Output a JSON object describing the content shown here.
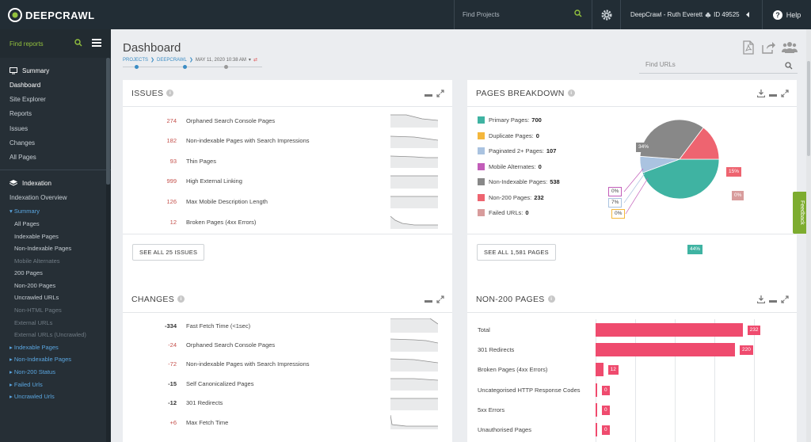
{
  "topbar": {
    "logo": "DEEPCRAWL",
    "search_placeholder": "Find Projects",
    "account": "DeepCrawl - Ruth Everett",
    "account_id": "ID 49525",
    "help": "Help"
  },
  "sidebar": {
    "search_placeholder": "Find reports",
    "summary_header": "Summary",
    "summary_items": [
      "Dashboard",
      "Site Explorer",
      "Reports",
      "Issues",
      "Changes",
      "All Pages"
    ],
    "indexation_header": "Indexation",
    "indexation_overview": "Indexation Overview",
    "summary_sub": "Summary",
    "sub_items": [
      {
        "label": "All Pages",
        "dim": false
      },
      {
        "label": "Indexable Pages",
        "dim": false
      },
      {
        "label": "Non-Indexable Pages",
        "dim": false
      },
      {
        "label": "Mobile Alternates",
        "dim": true
      },
      {
        "label": "200 Pages",
        "dim": false
      },
      {
        "label": "Non-200 Pages",
        "dim": false
      },
      {
        "label": "Uncrawled URLs",
        "dim": false
      },
      {
        "label": "Non-HTML Pages",
        "dim": true
      },
      {
        "label": "External URLs",
        "dim": true
      },
      {
        "label": "External URLs (Uncrawled)",
        "dim": true
      }
    ],
    "collapsed_groups": [
      "Indexable Pages",
      "Non-Indexable Pages",
      "Non-200 Status",
      "Failed Urls",
      "Uncrawled Urls"
    ]
  },
  "header": {
    "title": "Dashboard",
    "breadcrumb": [
      "PROJECTS",
      "DEEPCRAWL"
    ],
    "date": "MAY 11, 2020 10:38 AM",
    "find_urls_placeholder": "Find URLs"
  },
  "issues": {
    "title": "ISSUES",
    "rows": [
      {
        "value": "274",
        "label": "Orphaned Search Console Pages"
      },
      {
        "value": "182",
        "label": "Non-indexable Pages with Search Impressions"
      },
      {
        "value": "93",
        "label": "Thin Pages"
      },
      {
        "value": "999",
        "label": "High External Linking"
      },
      {
        "value": "126",
        "label": "Max Mobile Description Length"
      },
      {
        "value": "12",
        "label": "Broken Pages (4xx Errors)"
      }
    ],
    "see_all": "SEE ALL 25 ISSUES"
  },
  "changes": {
    "title": "CHANGES",
    "rows": [
      {
        "value": "-334",
        "label": "Fast Fetch Time (<1sec)"
      },
      {
        "value": "-24",
        "label": "Orphaned Search Console Pages"
      },
      {
        "value": "-72",
        "label": "Non-indexable Pages with Search Impressions"
      },
      {
        "value": "-15",
        "label": "Self Canonicalized Pages"
      },
      {
        "value": "-12",
        "label": "301 Redirects"
      },
      {
        "value": "+6",
        "label": "Max Fetch Time"
      }
    ]
  },
  "pages_breakdown": {
    "title": "PAGES BREAKDOWN",
    "see_all": "SEE ALL 1,581 PAGES",
    "colors": {
      "primary": "#3fb3a2",
      "duplicate": "#f4b73c",
      "paginated": "#aac3e0",
      "mobile": "#c25db9",
      "nonindexable": "#888888",
      "non200": "#ee6470",
      "failed": "#d89c9c"
    }
  },
  "non200": {
    "title": "NON-200 PAGES"
  },
  "chart_data": [
    {
      "type": "pie",
      "title": "PAGES BREAKDOWN",
      "legend": [
        {
          "label": "Primary Pages:",
          "value": 700
        },
        {
          "label": "Duplicate Pages:",
          "value": 0
        },
        {
          "label": "Paginated 2+ Pages:",
          "value": 107
        },
        {
          "label": "Mobile Alternates:",
          "value": 0
        },
        {
          "label": "Non-Indexable Pages:",
          "value": 538
        },
        {
          "label": "Non-200 Pages:",
          "value": 232
        },
        {
          "label": "Failed URLs:",
          "value": 0
        }
      ],
      "slice_labels": [
        "44%",
        "0%",
        "7%",
        "0%",
        "34%",
        "15%",
        "0%"
      ]
    },
    {
      "type": "bar",
      "title": "NON-200 PAGES",
      "categories": [
        "Total",
        "301 Redirects",
        "Broken Pages (4xx Errors)",
        "Uncategorised HTTP Response Codes",
        "5xx Errors",
        "Unauthorised Pages"
      ],
      "values": [
        232,
        220,
        12,
        0,
        0,
        0
      ],
      "xlim": [
        0,
        250
      ]
    }
  ],
  "feedback": "Feedback"
}
